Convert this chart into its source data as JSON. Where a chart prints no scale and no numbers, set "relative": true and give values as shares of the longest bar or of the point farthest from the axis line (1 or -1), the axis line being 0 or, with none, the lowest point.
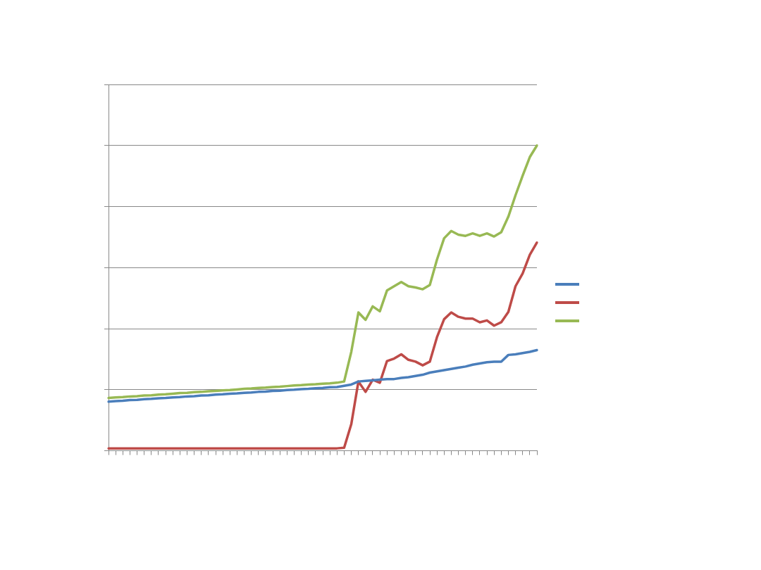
{
  "chart_data": {
    "type": "line",
    "relative": true,
    "grid": "y",
    "marker": "none",
    "line_style": "solid",
    "categories": [
      null,
      null,
      null,
      null,
      null,
      null,
      null,
      null,
      null,
      null,
      null,
      null,
      null,
      null,
      null,
      null,
      null,
      null,
      null,
      null,
      null,
      null,
      null,
      null,
      null,
      null,
      null,
      null,
      null,
      null,
      null,
      null,
      null,
      null,
      null,
      null,
      null,
      null,
      null,
      null,
      null,
      null,
      null,
      null,
      null,
      null,
      null,
      null,
      null,
      null,
      null,
      null,
      null,
      null,
      null,
      null,
      null,
      null,
      null,
      null,
      null
    ],
    "series": [
      {
        "color": "#4a7ebb",
        "values": [
          0.161,
          0.163,
          0.164,
          0.166,
          0.167,
          0.169,
          0.17,
          0.172,
          0.173,
          0.175,
          0.176,
          0.178,
          0.179,
          0.181,
          0.182,
          0.184,
          0.185,
          0.187,
          0.188,
          0.19,
          0.191,
          0.193,
          0.194,
          0.196,
          0.197,
          0.199,
          0.2,
          0.202,
          0.203,
          0.205,
          0.206,
          0.208,
          0.209,
          0.213,
          0.217,
          0.227,
          0.229,
          0.231,
          0.233,
          0.235,
          0.235,
          0.239,
          0.241,
          0.245,
          0.249,
          0.256,
          0.26,
          0.264,
          0.268,
          0.272,
          0.276,
          0.282,
          0.286,
          0.29,
          0.292,
          0.292,
          0.314,
          0.316,
          0.32,
          0.324,
          0.33
        ]
      },
      {
        "color": "#be4b48",
        "values": [
          0.008,
          0.008,
          0.008,
          0.008,
          0.008,
          0.008,
          0.008,
          0.008,
          0.008,
          0.008,
          0.008,
          0.008,
          0.008,
          0.008,
          0.008,
          0.008,
          0.008,
          0.008,
          0.008,
          0.008,
          0.008,
          0.008,
          0.008,
          0.008,
          0.008,
          0.008,
          0.008,
          0.008,
          0.008,
          0.008,
          0.008,
          0.008,
          0.008,
          0.01,
          0.087,
          0.227,
          0.193,
          0.233,
          0.223,
          0.294,
          0.302,
          0.316,
          0.298,
          0.292,
          0.28,
          0.292,
          0.372,
          0.431,
          0.453,
          0.439,
          0.433,
          0.433,
          0.421,
          0.427,
          0.41,
          0.421,
          0.455,
          0.539,
          0.581,
          0.642,
          0.682
        ]
      },
      {
        "color": "#98b954",
        "values": [
          0.173,
          0.175,
          0.176,
          0.178,
          0.179,
          0.181,
          0.182,
          0.184,
          0.185,
          0.187,
          0.189,
          0.19,
          0.192,
          0.193,
          0.195,
          0.196,
          0.198,
          0.199,
          0.201,
          0.203,
          0.204,
          0.206,
          0.207,
          0.209,
          0.21,
          0.212,
          0.214,
          0.215,
          0.217,
          0.218,
          0.22,
          0.221,
          0.223,
          0.227,
          0.324,
          0.453,
          0.429,
          0.473,
          0.457,
          0.525,
          0.539,
          0.553,
          0.539,
          0.535,
          0.529,
          0.543,
          0.626,
          0.696,
          0.72,
          0.708,
          0.704,
          0.712,
          0.704,
          0.712,
          0.702,
          0.716,
          0.767,
          0.837,
          0.901,
          0.962,
          1
        ]
      }
    ]
  }
}
